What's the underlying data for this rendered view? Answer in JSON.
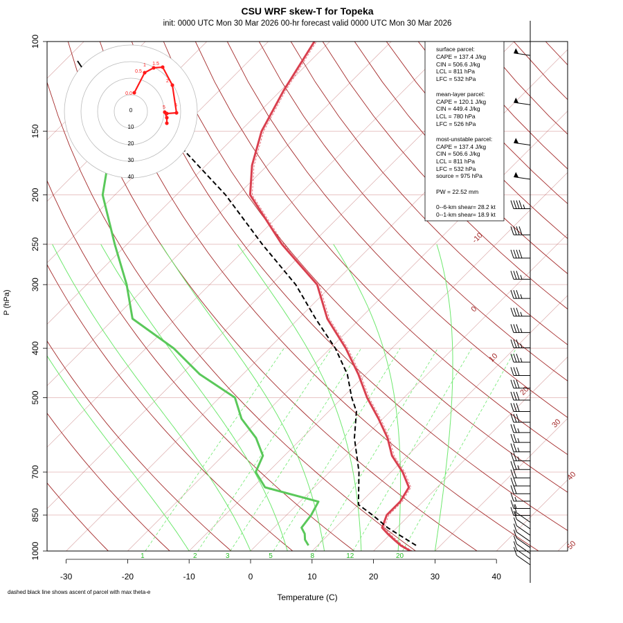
{
  "title": "CSU WRF skew-T for Topeka",
  "subtitle": "init: 0000 UTC Mon 30 Mar 2026     00-hr forecast valid 0000 UTC Mon 30 Mar 2026",
  "footnote": "dashed black line shows ascent of parcel with max theta-e",
  "stats": {
    "surface_header": "surface parcel:",
    "surface_cape": "CAPE = 137.4 J/kg",
    "surface_cin": "CIN = 506.6 J/kg",
    "surface_lcl": "LCL = 811 hPa",
    "surface_lfc": "LFC = 532 hPa",
    "ml_header": "mean-layer parcel:",
    "ml_cape": "CAPE = 120.1 J/kg",
    "ml_cin": "CIN = 449.4 J/kg",
    "ml_lcl": "LCL = 780 hPa",
    "ml_lfc": "LFC = 526 hPa",
    "mu_header": "most-unstable parcel:",
    "mu_cape": "CAPE = 137.4 J/kg",
    "mu_cin": "CIN = 506.6 J/kg",
    "mu_lcl": "LCL = 811 hPa",
    "mu_lfc": "LFC = 532 hPa",
    "mu_source": "source = 975 hPa",
    "pw": "PW =  22.52 mm",
    "shear_06": "0--6-km shear= 28.2 kt",
    "shear_01": "0--1-km shear= 18.9 kt"
  },
  "chart_data": {
    "type": "line",
    "title": "CSU WRF skew-T for Topeka",
    "xlabel": "Temperature (C)",
    "ylabel": "P (hPa)",
    "x_ticks": [
      -30,
      -20,
      -10,
      0,
      10,
      20,
      30,
      40
    ],
    "y_ticks": [
      100,
      150,
      200,
      250,
      300,
      400,
      500,
      700,
      850,
      1000
    ],
    "isotherm_labels": [
      "-10",
      "0",
      "10",
      "20",
      "30",
      "40",
      "50"
    ],
    "mixing_ratio_labels": [
      "1",
      "2",
      "3",
      "5",
      "8",
      "12",
      "20"
    ],
    "colors": {
      "temperature": "#d9404f",
      "dewpoint": "#5ac85a",
      "parcel": "#000000",
      "isotherm": "#a42a2a",
      "isobar": "#e8c4c4",
      "mixing_ratio": "#6de86d",
      "hodograph": "#ff1a1a"
    },
    "series": [
      {
        "name": "temperature",
        "pressure": [
          1000,
          975,
          950,
          925,
          900,
          850,
          800,
          750,
          700,
          650,
          600,
          550,
          500,
          450,
          400,
          350,
          300,
          250,
          200,
          175,
          150,
          125,
          100
        ],
        "values": [
          26,
          23.5,
          21.5,
          19.5,
          17.6,
          16.3,
          16.3,
          15.4,
          11.9,
          7.5,
          3.9,
          -0.7,
          -6.0,
          -11.2,
          -17.5,
          -25.3,
          -32.5,
          -44.8,
          -58.0,
          -62.5,
          -66.5,
          -69.5,
          -72.5
        ]
      },
      {
        "name": "dewpoint",
        "pressure": [
          975,
          950,
          925,
          900,
          850,
          800,
          750,
          700,
          650,
          600,
          550,
          500,
          450,
          400,
          350,
          300,
          250,
          200,
          175
        ],
        "values": [
          8.5,
          7.0,
          6.0,
          4.5,
          4.0,
          3.0,
          -8.0,
          -12.0,
          -13.5,
          -17.5,
          -23.0,
          -27.5,
          -37.0,
          -45.5,
          -57.0,
          -63.5,
          -72.0,
          -82.0,
          -86.0
        ]
      },
      {
        "name": "parcel",
        "pressure": [
          975,
          900,
          850,
          811,
          700,
          600,
          532,
          500,
          450,
          400,
          350,
          300,
          250,
          200,
          150
        ],
        "values": [
          26.0,
          18.5,
          14.0,
          10.0,
          4.8,
          -1.5,
          -5.5,
          -8.5,
          -13.0,
          -19.2,
          -27.2,
          -36.0,
          -48.0,
          -62.0,
          -82.0
        ]
      }
    ],
    "hodograph": {
      "ring_labels": [
        "0",
        "10",
        "20",
        "30",
        "40"
      ],
      "point_labels": [
        "0.0",
        "0.5",
        "1",
        "1.5",
        "2",
        "5",
        "6"
      ]
    },
    "wind_barbs": {
      "pressure": [
        1000,
        975,
        950,
        925,
        900,
        875,
        850,
        825,
        800,
        775,
        750,
        725,
        700,
        675,
        650,
        625,
        600,
        575,
        550,
        525,
        500,
        475,
        450,
        425,
        400,
        375,
        350,
        325,
        300,
        275,
        250,
        225,
        200,
        175,
        150,
        125,
        100
      ],
      "speed_kt": [
        10,
        10,
        10,
        10,
        10,
        10,
        10,
        10,
        15,
        15,
        15,
        20,
        20,
        20,
        25,
        25,
        25,
        25,
        25,
        30,
        30,
        30,
        30,
        30,
        35,
        35,
        35,
        35,
        35,
        35,
        40,
        40,
        45,
        55,
        55,
        55,
        55
      ]
    }
  }
}
